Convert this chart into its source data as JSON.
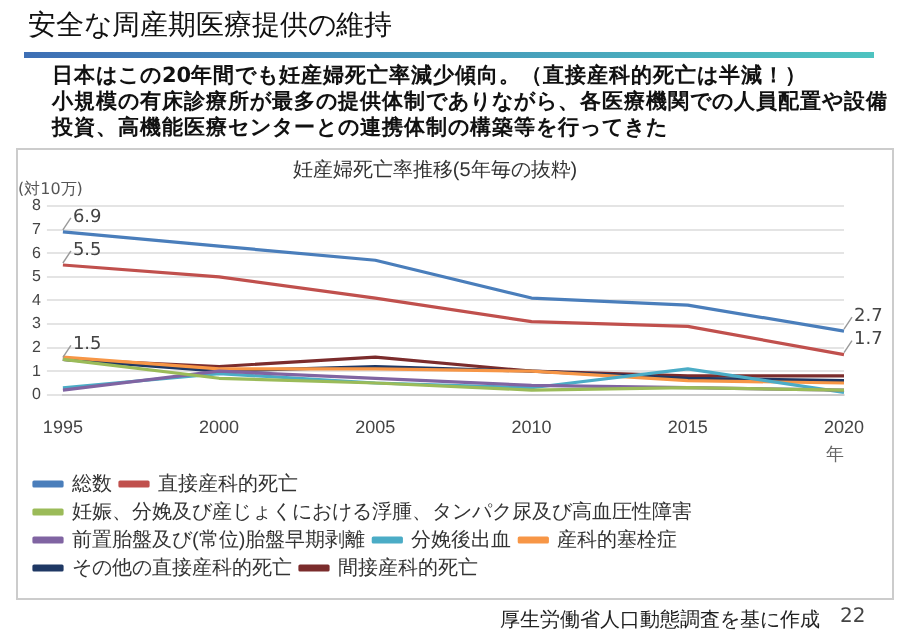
{
  "chart_data": {
    "type": "line",
    "title": "妊産婦死亡率推移(5年毎の抜粋)",
    "xlabel": "年",
    "ylabel": "(対10万)",
    "categories": [
      "1995",
      "2000",
      "2005",
      "2010",
      "2015",
      "2020"
    ],
    "ylim": [
      0,
      8
    ],
    "yticks": [
      0,
      1,
      2,
      3,
      4,
      5,
      6,
      7,
      8
    ],
    "grid": "y",
    "legend": "bottom",
    "marker": "none",
    "line_style": "solid",
    "series": [
      {
        "name": "総数",
        "color": "#4a7ebb",
        "values": [
          6.9,
          6.3,
          5.7,
          4.1,
          3.8,
          2.7
        ],
        "value_labels": [
          "6.9",
          null,
          null,
          null,
          null,
          "2.7"
        ]
      },
      {
        "name": "直接産科的死亡",
        "color": "#c0504d",
        "values": [
          5.5,
          5.0,
          4.1,
          3.1,
          2.9,
          1.7
        ],
        "value_labels": [
          "5.5",
          null,
          null,
          null,
          null,
          "1.7"
        ]
      },
      {
        "name": "妊娠、分娩及び産じょくにおける浮腫、タンパク尿及び高血圧性障害",
        "color": "#9bbb59",
        "values": [
          1.5,
          0.7,
          0.5,
          0.2,
          0.3,
          0.2
        ],
        "value_labels": [
          "1.5",
          null,
          null,
          null,
          null,
          null
        ]
      },
      {
        "name": "前置胎盤及び(常位)胎盤早期剥離",
        "color": "#8064a2",
        "values": [
          0.2,
          1.0,
          0.7,
          0.4,
          0.3,
          0.2
        ]
      },
      {
        "name": "分娩後出血",
        "color": "#4bacc6",
        "values": [
          0.3,
          0.9,
          0.5,
          0.3,
          1.1,
          0.1
        ]
      },
      {
        "name": "産科的塞栓症",
        "color": "#f79646",
        "values": [
          1.6,
          1.1,
          1.1,
          1.0,
          0.6,
          0.5
        ]
      },
      {
        "name": "その他の直接産科的死亡",
        "color": "#1f3864",
        "values": [
          1.5,
          1.0,
          1.2,
          1.0,
          0.7,
          0.6
        ]
      },
      {
        "name": "間接産科的死亡",
        "color": "#7b2c2c",
        "values": [
          1.5,
          1.2,
          1.6,
          1.0,
          0.8,
          0.8
        ]
      }
    ],
    "annotations": [
      "安全な周産期医療提供の維持",
      "日本はこの20年間でも妊産婦死亡率減少傾向。（直接産科的死亡は半減！）",
      "小規模の有床診療所が最多の提供体制でありながら、各医療機関での人員配置や設備投資、高機能医療センターとの連携体制の構築等を行ってきた",
      "厚生労働省人口動態調査を基に作成",
      "22"
    ]
  }
}
